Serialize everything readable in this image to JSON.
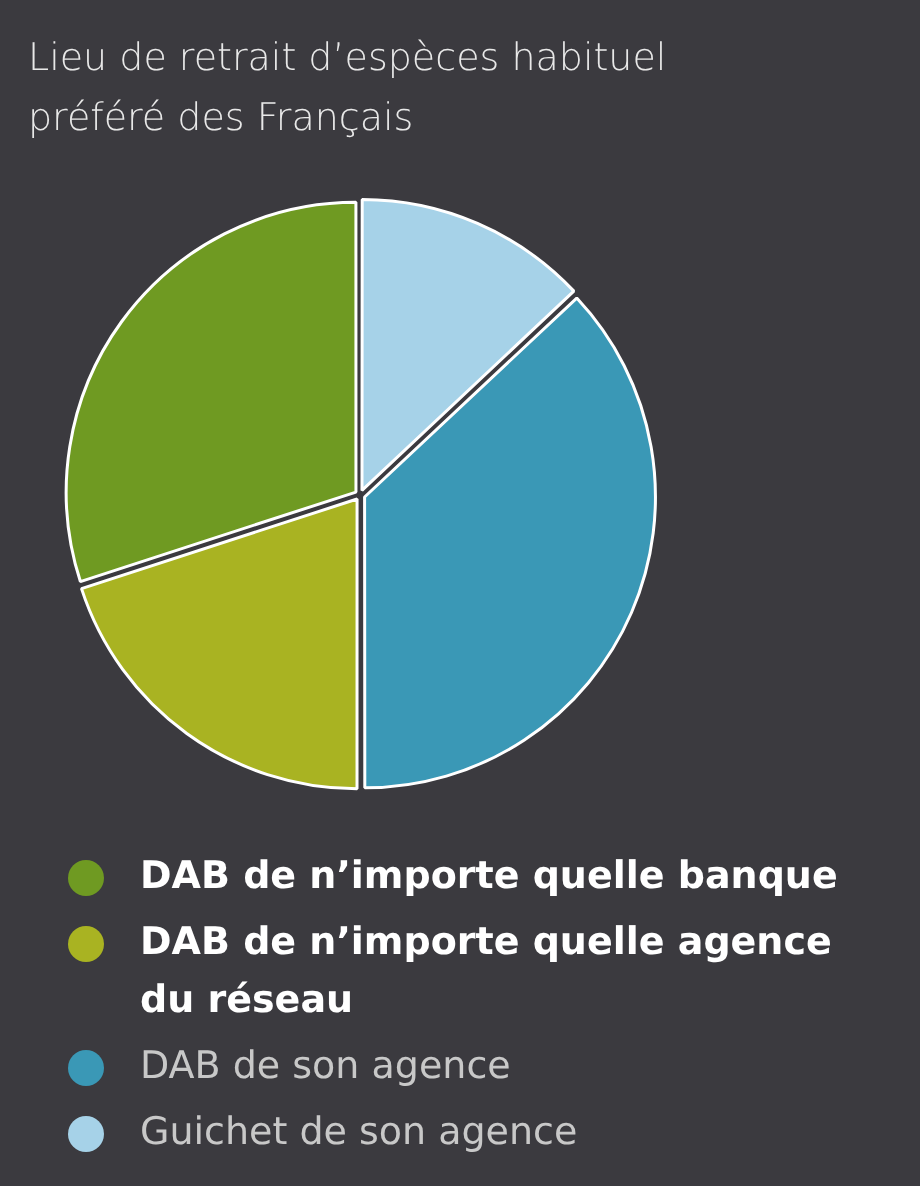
{
  "chart_data": {
    "type": "pie",
    "title": "Lieu de retrait d’espèces habituel préféré des Français",
    "categories": [
      "DAB de n’importe quelle banque",
      "DAB de n’importe quelle agence du réseau",
      "DAB de son agence",
      "Guichet de son agence"
    ],
    "values": [
      30,
      20,
      37,
      13
    ],
    "colors": [
      "#6f9a22",
      "#a9b322",
      "#3a98b6",
      "#a6d2e8"
    ],
    "legend": "bottom"
  }
}
